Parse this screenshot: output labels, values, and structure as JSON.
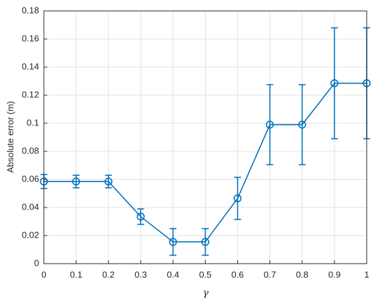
{
  "chart_data": {
    "type": "errorbar-line",
    "xlabel": "γ",
    "ylabel": "Absolute error (m)",
    "x": [
      0,
      0.1,
      0.2,
      0.3,
      0.4,
      0.5,
      0.6,
      0.7,
      0.8,
      0.9,
      1
    ],
    "values": [
      0.0585,
      0.0585,
      0.0585,
      0.0335,
      0.0155,
      0.0155,
      0.0465,
      0.099,
      0.099,
      0.1285,
      0.1285
    ],
    "errors": [
      0.005,
      0.0045,
      0.0045,
      0.0055,
      0.0095,
      0.0095,
      0.015,
      0.0285,
      0.0285,
      0.0395,
      0.0395
    ],
    "color": "#0072bd",
    "xlim": [
      0,
      1
    ],
    "xticks": [
      0,
      0.1,
      0.2,
      0.3,
      0.4,
      0.5,
      0.6,
      0.7,
      0.8,
      0.9,
      1
    ],
    "ylim": [
      0,
      0.18
    ],
    "yticks": [
      0,
      0.02,
      0.04,
      0.06,
      0.08,
      0.1,
      0.12,
      0.14,
      0.16,
      0.18
    ],
    "grid": true
  }
}
